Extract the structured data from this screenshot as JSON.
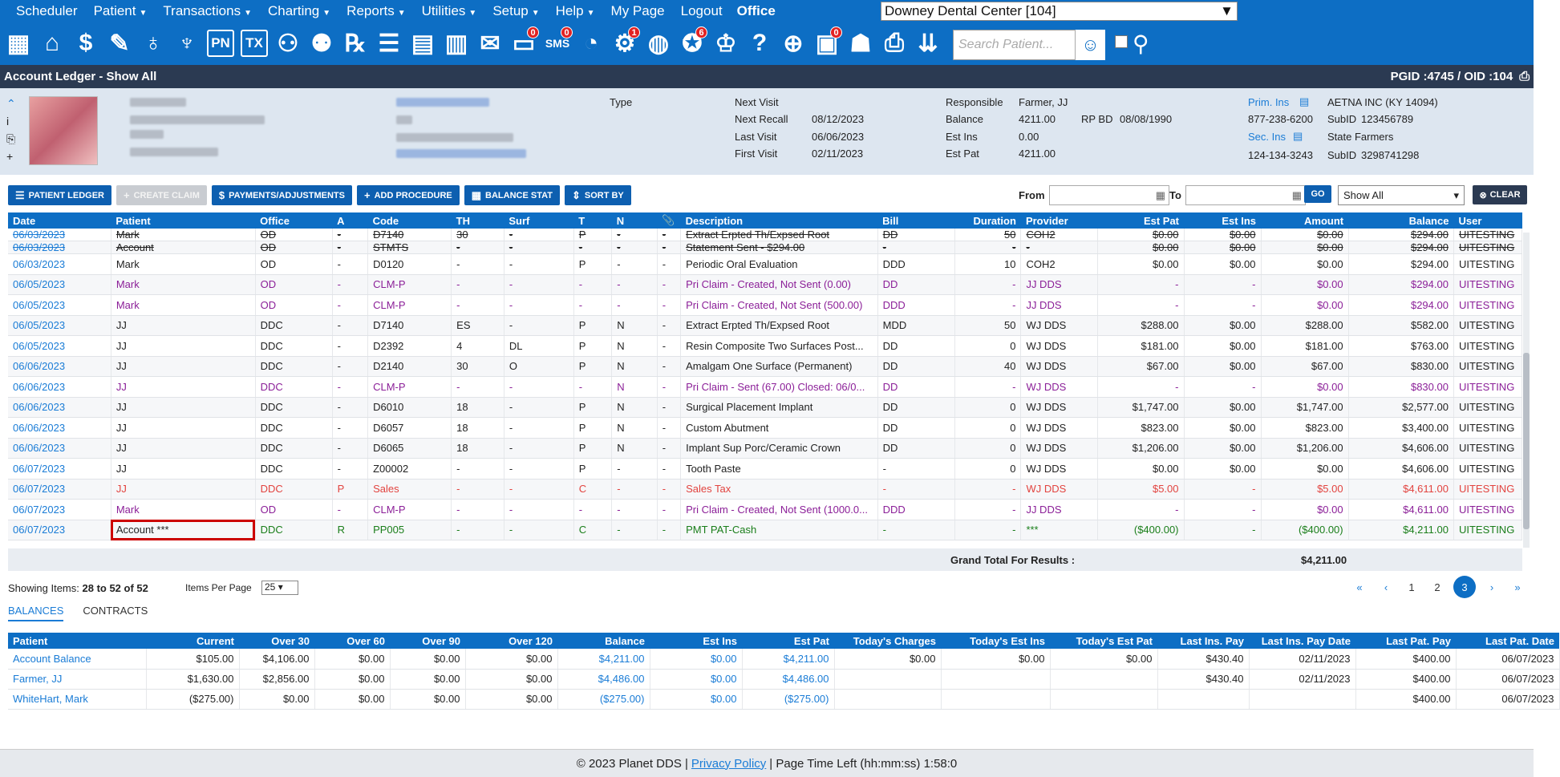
{
  "menu": {
    "items": [
      "Scheduler",
      "Patient",
      "Transactions",
      "Charting",
      "Reports",
      "Utilities",
      "Setup",
      "Help",
      "My Page",
      "Logout"
    ],
    "office_label": "Office",
    "office_value": "Downey Dental Center [104]"
  },
  "iconbar": {
    "badges": {
      "messages": "0",
      "sms": "0",
      "alerts": "1",
      "rewards": "6",
      "tasks": "0"
    },
    "pn": "PN",
    "tx": "TX",
    "search_placeholder": "Search Patient..."
  },
  "title": {
    "text": "Account Ledger - Show All",
    "ids": "PGID :4745  /  OID :104"
  },
  "patient": {
    "type_label": "Type",
    "next_visit_label": "Next Visit",
    "next_visit": "",
    "next_recall_label": "Next Recall",
    "next_recall": "08/12/2023",
    "last_visit_label": "Last Visit",
    "last_visit": "06/06/2023",
    "first_visit_label": "First Visit",
    "first_visit": "02/11/2023",
    "responsible_label": "Responsible",
    "responsible": "Farmer, JJ",
    "balance_label": "Balance",
    "balance": "4211.00",
    "rpbd_label": "RP BD",
    "rpbd": "08/08/1990",
    "est_ins_label": "Est Ins",
    "est_ins": "0.00",
    "est_pat_label": "Est Pat",
    "est_pat": "4211.00",
    "prim_ins_label": "Prim. Ins",
    "prim_ins": "AETNA INC (KY 14094)",
    "prim_phone": "877-238-6200",
    "prim_subid_label": "SubID",
    "prim_subid": "123456789",
    "sec_ins_label": "Sec. Ins",
    "sec_ins": "State Farmers",
    "sec_phone": "124-134-3243",
    "sec_subid_label": "SubID",
    "sec_subid": "3298741298",
    "dash1": "-",
    "dash2": "-"
  },
  "toolbar": {
    "ledger": "PATIENT LEDGER",
    "claim": "CREATE CLAIM",
    "payments": "PAYMENTS/ADJUSTMENTS",
    "add_proc": "ADD PROCEDURE",
    "balance_stat": "BALANCE STAT",
    "sort_by": "SORT BY",
    "from": "From",
    "to": "To",
    "go": "GO",
    "show": "Show All",
    "clear": "CLEAR"
  },
  "ledger": {
    "headers": [
      "Date",
      "Patient",
      "Office",
      "A",
      "Code",
      "TH",
      "Surf",
      "T",
      "N",
      "📎",
      "Description",
      "Bill",
      "Duration",
      "Provider",
      "Est Pat",
      "Est Ins",
      "Amount",
      "Balance",
      "User"
    ],
    "rows": [
      {
        "style": "strike",
        "cells": [
          "06/03/2023",
          "Mark",
          "OD",
          "-",
          "D7140",
          "30",
          "-",
          "P",
          "-",
          "-",
          "Extract Erpted Th/Expsed Root",
          "DD",
          "50",
          "COH2",
          "$0.00",
          "$0.00",
          "$0.00",
          "$294.00",
          "UITESTING"
        ]
      },
      {
        "style": "strike",
        "cells": [
          "06/03/2023",
          "Account",
          "OD",
          "-",
          "STMTS",
          "-",
          "-",
          "-",
          "-",
          "-",
          "Statement Sent - $294.00",
          "-",
          "-",
          "-",
          "$0.00",
          "$0.00",
          "$0.00",
          "$294.00",
          "UITESTING"
        ]
      },
      {
        "style": "",
        "cells": [
          "06/03/2023",
          "Mark",
          "OD",
          "-",
          "D0120",
          "-",
          "-",
          "P",
          "-",
          "-",
          "Periodic Oral Evaluation",
          "DDD",
          "10",
          "COH2",
          "$0.00",
          "$0.00",
          "$0.00",
          "$294.00",
          "UITESTING"
        ]
      },
      {
        "style": "purple",
        "cells": [
          "06/05/2023",
          "Mark",
          "OD",
          "-",
          "CLM-P",
          "-",
          "-",
          "-",
          "-",
          "-",
          "Pri Claim - Created, Not Sent (0.00)",
          "DD",
          "-",
          "JJ DDS",
          "-",
          "-",
          "$0.00",
          "$294.00",
          "UITESTING"
        ]
      },
      {
        "style": "purple",
        "cells": [
          "06/05/2023",
          "Mark",
          "OD",
          "-",
          "CLM-P",
          "-",
          "-",
          "-",
          "-",
          "-",
          "Pri Claim - Created, Not Sent (500.00)",
          "DDD",
          "-",
          "JJ DDS",
          "-",
          "-",
          "$0.00",
          "$294.00",
          "UITESTING"
        ]
      },
      {
        "style": "",
        "cells": [
          "06/05/2023",
          "JJ",
          "DDC",
          "-",
          "D7140",
          "ES",
          "-",
          "P",
          "N",
          "-",
          "Extract Erpted Th/Expsed Root",
          "MDD",
          "50",
          "WJ DDS",
          "$288.00",
          "$0.00",
          "$288.00",
          "$582.00",
          "UITESTING"
        ]
      },
      {
        "style": "",
        "cells": [
          "06/05/2023",
          "JJ",
          "DDC",
          "-",
          "D2392",
          "4",
          "DL",
          "P",
          "N",
          "-",
          "Resin Composite Two Surfaces Post...",
          "DD",
          "0",
          "WJ DDS",
          "$181.00",
          "$0.00",
          "$181.00",
          "$763.00",
          "UITESTING"
        ]
      },
      {
        "style": "",
        "cells": [
          "06/06/2023",
          "JJ",
          "DDC",
          "-",
          "D2140",
          "30",
          "O",
          "P",
          "N",
          "-",
          "Amalgam One Surface (Permanent)",
          "DD",
          "40",
          "WJ DDS",
          "$67.00",
          "$0.00",
          "$67.00",
          "$830.00",
          "UITESTING"
        ]
      },
      {
        "style": "purple",
        "cells": [
          "06/06/2023",
          "JJ",
          "DDC",
          "-",
          "CLM-P",
          "-",
          "-",
          "-",
          "N",
          "-",
          "Pri Claim - Sent (67.00) Closed: 06/0...",
          "DD",
          "-",
          "WJ DDS",
          "-",
          "-",
          "$0.00",
          "$830.00",
          "UITESTING"
        ]
      },
      {
        "style": "",
        "cells": [
          "06/06/2023",
          "JJ",
          "DDC",
          "-",
          "D6010",
          "18",
          "-",
          "P",
          "N",
          "-",
          "Surgical Placement Implant",
          "DD",
          "0",
          "WJ DDS",
          "$1,747.00",
          "$0.00",
          "$1,747.00",
          "$2,577.00",
          "UITESTING"
        ]
      },
      {
        "style": "",
        "cells": [
          "06/06/2023",
          "JJ",
          "DDC",
          "-",
          "D6057",
          "18",
          "-",
          "P",
          "N",
          "-",
          "Custom Abutment",
          "DD",
          "0",
          "WJ DDS",
          "$823.00",
          "$0.00",
          "$823.00",
          "$3,400.00",
          "UITESTING"
        ]
      },
      {
        "style": "",
        "cells": [
          "06/06/2023",
          "JJ",
          "DDC",
          "-",
          "D6065",
          "18",
          "-",
          "P",
          "N",
          "-",
          "Implant Sup Porc/Ceramic Crown",
          "DD",
          "0",
          "WJ DDS",
          "$1,206.00",
          "$0.00",
          "$1,206.00",
          "$4,606.00",
          "UITESTING"
        ]
      },
      {
        "style": "",
        "cells": [
          "06/07/2023",
          "JJ",
          "DDC",
          "-",
          "Z00002",
          "-",
          "-",
          "P",
          "-",
          "-",
          "Tooth Paste",
          "-",
          "0",
          "WJ DDS",
          "$0.00",
          "$0.00",
          "$0.00",
          "$4,606.00",
          "UITESTING"
        ]
      },
      {
        "style": "red",
        "cells": [
          "06/07/2023",
          "JJ",
          "DDC",
          "P",
          "Sales",
          "-",
          "-",
          "C",
          "-",
          "-",
          "Sales Tax",
          "-",
          "-",
          "WJ DDS",
          "$5.00",
          "-",
          "$5.00",
          "$4,611.00",
          "UITESTING"
        ]
      },
      {
        "style": "purple",
        "cells": [
          "06/07/2023",
          "Mark",
          "OD",
          "-",
          "CLM-P",
          "-",
          "-",
          "-",
          "-",
          "-",
          "Pri Claim - Created, Not Sent (1000.0...",
          "DDD",
          "-",
          "JJ DDS",
          "-",
          "-",
          "$0.00",
          "$4,611.00",
          "UITESTING"
        ]
      },
      {
        "style": "green",
        "cells": [
          "06/07/2023",
          "Account ***",
          "DDC",
          "R",
          "PP005",
          "-",
          "-",
          "C",
          "-",
          "-",
          "PMT PAT-Cash",
          "-",
          "-",
          "***",
          "($400.00)",
          "-",
          "($400.00)",
          "$4,211.00",
          "UITESTING"
        ]
      }
    ]
  },
  "grand_total": {
    "label": "Grand Total For Results :",
    "value": "$4,211.00"
  },
  "paging": {
    "showing_label": "Showing Items:",
    "showing": "28 to 52 of 52",
    "ipp_label": "Items Per Page",
    "ipp": "25",
    "first": "«",
    "prev": "‹",
    "p1": "1",
    "p2": "2",
    "p3": "3",
    "next": "›",
    "last": "»"
  },
  "tabs": {
    "balances": "BALANCES",
    "contracts": "CONTRACTS"
  },
  "balances": {
    "headers": [
      "Patient",
      "Current",
      "Over 30",
      "Over 60",
      "Over 90",
      "Over 120",
      "Balance",
      "Est Ins",
      "Est Pat",
      "Today's Charges",
      "Today's Est Ins",
      "Today's Est Pat",
      "Last Ins. Pay",
      "Last Ins. Pay Date",
      "Last Pat. Pay",
      "Last Pat. Date"
    ],
    "rows": [
      [
        "Account Balance",
        "$105.00",
        "$4,106.00",
        "$0.00",
        "$0.00",
        "$0.00",
        "$4,211.00",
        "$0.00",
        "$4,211.00",
        "$0.00",
        "$0.00",
        "$0.00",
        "$430.40",
        "02/11/2023",
        "$400.00",
        "06/07/2023"
      ],
      [
        "Farmer, JJ",
        "$1,630.00",
        "$2,856.00",
        "$0.00",
        "$0.00",
        "$0.00",
        "$4,486.00",
        "$0.00",
        "$4,486.00",
        "",
        "",
        "",
        "$430.40",
        "02/11/2023",
        "$400.00",
        "06/07/2023"
      ],
      [
        "WhiteHart, Mark",
        "($275.00)",
        "$0.00",
        "$0.00",
        "$0.00",
        "$0.00",
        "($275.00)",
        "$0.00",
        "($275.00)",
        "",
        "",
        "",
        "",
        "",
        "$400.00",
        "06/07/2023"
      ]
    ]
  },
  "footer": {
    "copy": "© 2023 Planet DDS |",
    "privacy": "Privacy Policy",
    "time": "|  Page Time Left (hh:mm:ss) 1:58:0"
  }
}
